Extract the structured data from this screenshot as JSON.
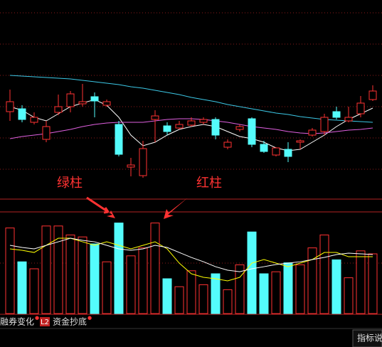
{
  "chart_data": {
    "type": "candlestick",
    "ylim": [
      0,
      100
    ],
    "ohlc": [
      [
        45.2,
        50.8,
        57.6,
        40
      ],
      [
        46.8,
        40.8,
        48.8,
        39.2
      ],
      [
        39.2,
        42,
        44.8,
        38
      ],
      [
        29.6,
        36.8,
        40,
        28
      ],
      [
        44.8,
        48,
        54.8,
        43.2
      ],
      [
        48,
        55.2,
        56.8,
        44.8
      ],
      [
        49.6,
        50.8,
        60.8,
        48
      ],
      [
        53.6,
        51.2,
        56,
        42
      ],
      [
        48.8,
        50.8,
        52,
        48
      ],
      [
        38,
        21.2,
        40,
        20
      ],
      [
        14,
        15.2,
        19.2,
        8.8
      ],
      [
        9.2,
        24.4,
        28.8,
        8
      ],
      [
        40.8,
        42.8,
        46,
        28
      ],
      [
        37.2,
        34,
        39.2,
        32
      ],
      [
        36,
        38,
        40,
        35.2
      ],
      [
        37.6,
        40,
        42,
        36.8
      ],
      [
        39.2,
        40.8,
        42,
        38
      ],
      [
        40.8,
        32,
        42,
        29.6
      ],
      [
        25.2,
        28,
        29.6,
        24
      ],
      [
        35.2,
        36.8,
        38,
        34
      ],
      [
        41.2,
        26.8,
        42,
        25.2
      ],
      [
        26.8,
        22.8,
        28.8,
        22
      ],
      [
        20.8,
        24.8,
        25.2,
        20
      ],
      [
        24,
        20,
        28,
        16.8
      ],
      [
        28,
        28.8,
        29.6,
        24
      ],
      [
        32,
        34.8,
        36,
        31.2
      ],
      [
        34,
        42,
        44,
        32
      ],
      [
        45.2,
        42,
        48,
        40.8
      ],
      [
        40,
        42,
        48,
        39.2
      ],
      [
        44,
        50,
        54,
        42
      ],
      [
        52,
        56.8,
        60,
        51.2
      ]
    ],
    "up_color": "#ff3232",
    "down_color": "#54fcfc",
    "ma": [
      {
        "color": "#3cc8e6",
        "values": [
          65.6,
          65.2,
          64.8,
          64.4,
          64,
          63.6,
          62.8,
          62,
          61.2,
          60.4,
          59.2,
          58.4,
          57.2,
          56,
          54.8,
          53.2,
          52,
          50.8,
          49.2,
          48,
          46.8,
          45.6,
          44.4,
          43.6,
          42.4,
          41.6,
          40.8,
          40.4,
          40,
          39.6,
          39.2
        ]
      },
      {
        "color": "#ffffff",
        "values": [
          48,
          46,
          42,
          40,
          44,
          48,
          50,
          52,
          48.8,
          42,
          32,
          26,
          28,
          32,
          35.2,
          36.8,
          38,
          36.8,
          34,
          31.2,
          30,
          28,
          24.8,
          23.2,
          24,
          28,
          32,
          36.8,
          40.8,
          44,
          47.2
        ]
      },
      {
        "color": "#e060e0",
        "values": [
          30,
          31.2,
          32,
          32.8,
          34,
          35.2,
          36.8,
          38,
          38.8,
          39.2,
          39.2,
          39.2,
          40,
          40.8,
          41.2,
          41.2,
          40.8,
          40,
          39.2,
          38,
          36.8,
          36,
          35.2,
          34,
          33.2,
          32.8,
          33.2,
          34,
          34.8,
          35.2,
          36
        ]
      }
    ],
    "volume": {
      "type": "bar",
      "ylim": [
        0,
        100
      ],
      "values": [
        86,
        52,
        45,
        88,
        88,
        79,
        77,
        70,
        52,
        91,
        58,
        66,
        91,
        35,
        27,
        43,
        29,
        40,
        24,
        49,
        82,
        40,
        42,
        51,
        49,
        66,
        79,
        54,
        36,
        63,
        60
      ],
      "ma": [
        {
          "color": "#ffff00",
          "values": [
            65,
            63.6,
            61.4,
            68.6,
            75.7,
            75.7,
            72.1,
            68.6,
            72.1,
            68.6,
            65,
            68.6,
            72.1,
            65,
            50.7,
            40,
            36.4,
            35,
            32.9,
            36.4,
            50.7,
            54.3,
            50.7,
            47.1,
            50.7,
            54.3,
            61.4,
            61.4,
            57.1,
            57.1,
            57.1
          ]
        },
        {
          "color": "#ffffff",
          "values": [
            68.6,
            66.4,
            65,
            68.6,
            72.1,
            75.7,
            73.6,
            72.1,
            68.6,
            65,
            63.6,
            65,
            68.6,
            66.4,
            61.4,
            56.4,
            52.1,
            47.1,
            43.6,
            42.1,
            45,
            47.1,
            49.3,
            50.7,
            52.1,
            54.3,
            56.4,
            59.3,
            60.7,
            60,
            59.3
          ]
        }
      ]
    },
    "annotations": [
      "绿柱",
      "红柱"
    ]
  },
  "tabs": [
    "融券变化",
    "L2",
    "资金抄底"
  ],
  "footer_button": "指标说"
}
